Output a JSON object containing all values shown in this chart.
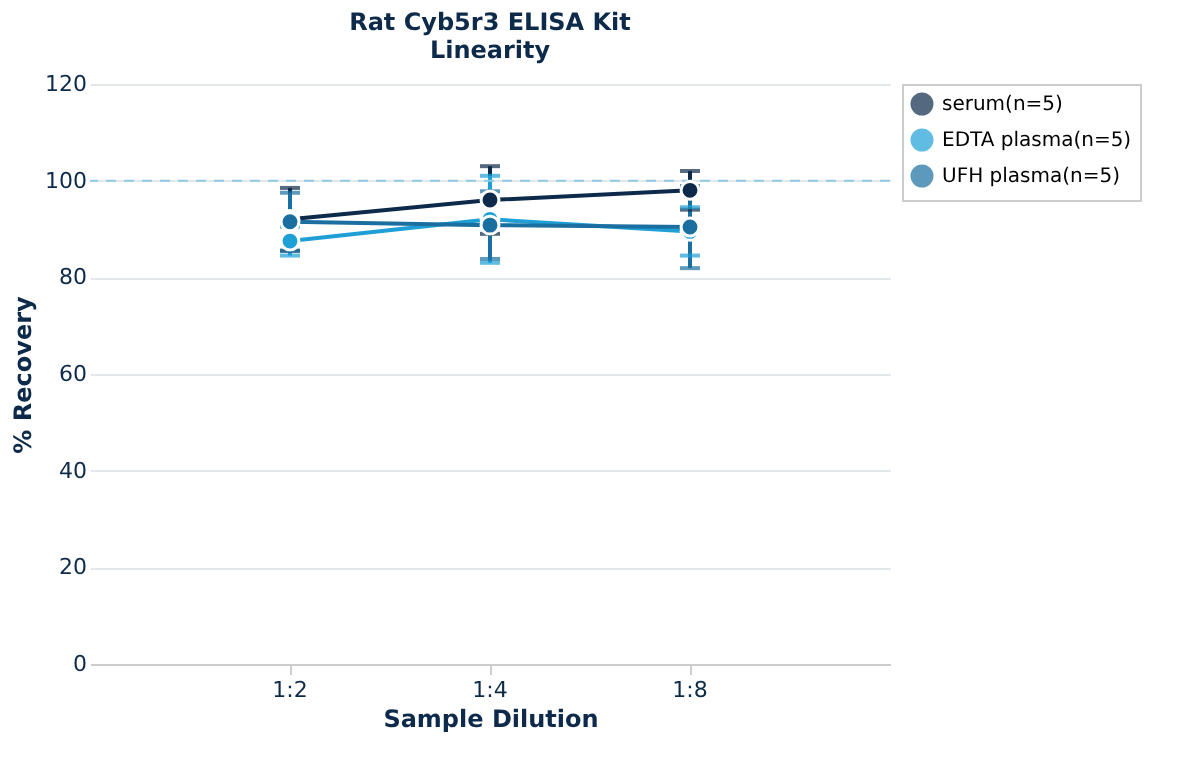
{
  "chart_data": {
    "type": "line",
    "title": "Rat Cyb5r3 ELISA Kit",
    "subtitle": "Linearity",
    "xlabel": "Sample Dilution",
    "ylabel": "% Recovery",
    "categories": [
      "1:2",
      "1:4",
      "1:8"
    ],
    "series": [
      {
        "name": "serum(n=5)",
        "color": "#0d2a4a",
        "values": [
          92,
          96,
          98
        ],
        "errors": [
          6.5,
          7,
          4
        ]
      },
      {
        "name": "EDTA plasma(n=5)",
        "color": "#1ea0d6",
        "values": [
          87.5,
          92,
          89.5
        ],
        "errors": [
          3,
          9,
          5
        ]
      },
      {
        "name": "UFH plasma(n=5)",
        "color": "#1a6fa0",
        "values": [
          91.5,
          90.8,
          90.4
        ],
        "errors": [
          6,
          7,
          8.5
        ]
      }
    ],
    "ylim": [
      0,
      120
    ],
    "yticks": [
      0,
      20,
      40,
      60,
      80,
      100,
      120
    ],
    "grid": "y",
    "legend": "top right",
    "marker": "circle",
    "line_style": "solid",
    "ref_lines": [
      {
        "axis": "y",
        "value": 100,
        "color": "#8ecae6",
        "line_style": "dashed"
      }
    ]
  }
}
